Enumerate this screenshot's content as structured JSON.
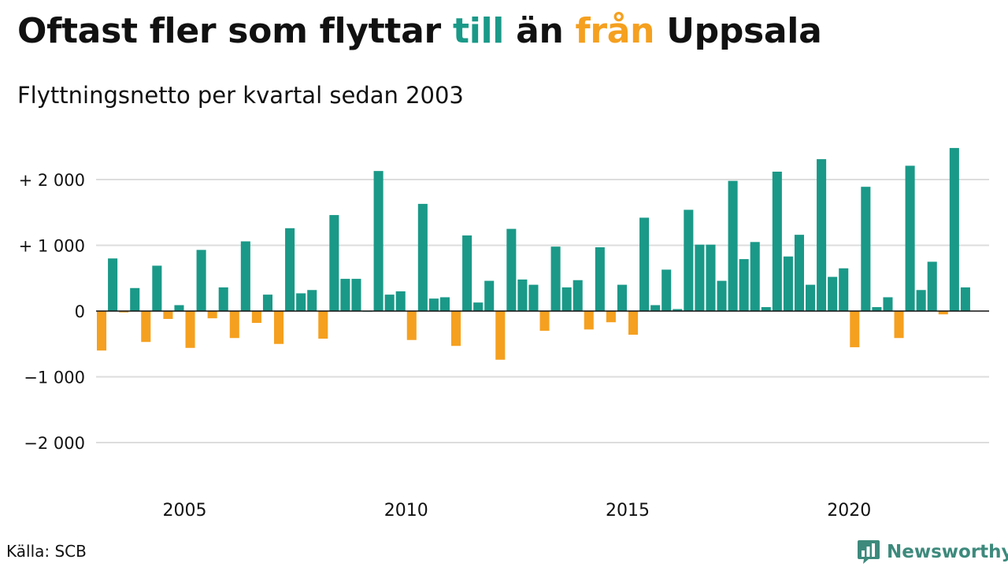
{
  "header": {
    "title_parts": [
      {
        "text": "Oftast fler som flyttar ",
        "color": "#111111"
      },
      {
        "text": "till",
        "color": "#1a9988"
      },
      {
        "text": " än ",
        "color": "#111111"
      },
      {
        "text": "från",
        "color": "#f5a01f"
      },
      {
        "text": " Uppsala",
        "color": "#111111"
      }
    ],
    "subtitle": "Flyttningsnetto per kvartal sedan 2003"
  },
  "footer": {
    "source": "Källa: SCB",
    "brand": "Newsworthy",
    "brand_icon": "bar-chart-speech-bubble-icon"
  },
  "colors": {
    "positive": "#1a9988",
    "negative": "#f5a01f",
    "grid": "#dddddd",
    "zero_line": "#111111",
    "brand": "#3d8a7c"
  },
  "chart_data": {
    "type": "bar",
    "title": "Oftast fler som flyttar till än från Uppsala",
    "subtitle": "Flyttningsnetto per kvartal sedan 2003",
    "xlabel": "",
    "ylabel": "",
    "ylim": [
      -2600,
      2600
    ],
    "yticks": [
      2000,
      1000,
      0,
      -1000,
      -2000
    ],
    "ytick_labels": [
      "+ 2 000",
      "+ 1 000",
      "0",
      "−1 000",
      "−2 000"
    ],
    "xticks": [
      2005,
      2010,
      2015,
      2020
    ],
    "xtick_labels": [
      "2005",
      "2010",
      "2015",
      "2020"
    ],
    "x_start": 2003,
    "periods_per_year": 4,
    "grid": true,
    "legend": "none",
    "colors": {
      "positive": "#1a9988",
      "negative": "#f5a01f"
    },
    "values": [
      -600,
      800,
      -20,
      350,
      -470,
      690,
      -120,
      90,
      -560,
      930,
      -110,
      360,
      -410,
      1060,
      -180,
      250,
      -500,
      1260,
      270,
      320,
      -420,
      1460,
      490,
      490,
      0,
      2130,
      250,
      300,
      -440,
      1630,
      190,
      210,
      -530,
      1150,
      130,
      460,
      -740,
      1250,
      480,
      400,
      -300,
      980,
      360,
      470,
      -280,
      970,
      -170,
      400,
      -360,
      1420,
      90,
      630,
      30,
      1540,
      1010,
      1010,
      460,
      1980,
      790,
      1050,
      60,
      2120,
      830,
      1160,
      400,
      2310,
      520,
      650,
      -550,
      1890,
      60,
      210,
      -410,
      2210,
      320,
      750,
      -50,
      2480,
      360
    ]
  }
}
